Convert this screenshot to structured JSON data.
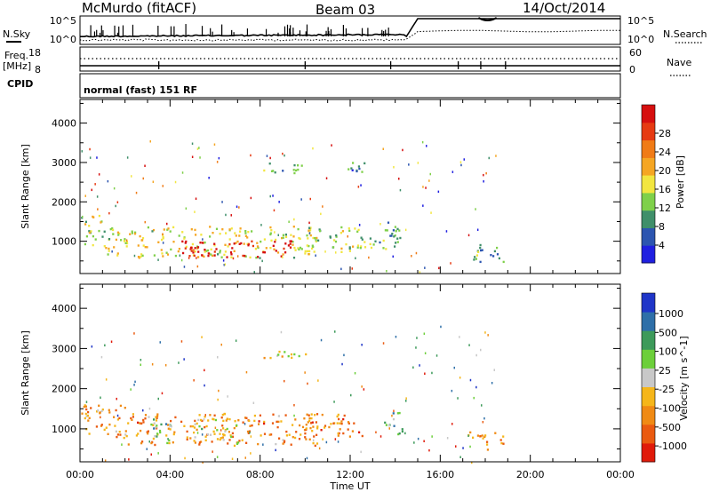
{
  "header": {
    "station": "McMurdo (fitACF)",
    "beam": "Beam 03",
    "date": "14/Oct/2014"
  },
  "noise_panel": {
    "left_label": "N.Sky",
    "right_label": "N.Search",
    "left_ticks": [
      "10^5",
      "10^0"
    ],
    "right_ticks": [
      "10^5",
      "10^0"
    ]
  },
  "freq_panel": {
    "left_label_line1": "Freq.",
    "left_label_line2": "[MHz]",
    "left_ticks": [
      "18",
      "8"
    ],
    "right_label": "Nave",
    "right_ticks": [
      "60",
      "0"
    ]
  },
  "cpid": {
    "label": "CPID",
    "mode": "normal (fast) 151 RF"
  },
  "chart_data": [
    {
      "type": "heatmap",
      "parameter": "Power",
      "ylabel": "Slant Range [km]",
      "xlabel": "",
      "x_ticks": [
        "00:00",
        "04:00",
        "08:00",
        "12:00",
        "16:00",
        "20:00",
        "00:00"
      ],
      "y_ticks": [
        1000,
        2000,
        3000,
        4000
      ],
      "xlim_hours": [
        0,
        24
      ],
      "ylim_km": [
        180,
        4600
      ],
      "colorbar": {
        "label": "Power [dB]",
        "ticks": [
          "4",
          "8",
          "12",
          "16",
          "20",
          "24",
          "28"
        ],
        "colors": [
          "#1f1fe0",
          "#2c55b0",
          "#3f8f6a",
          "#7fd04a",
          "#f2e640",
          "#f5a623",
          "#f07b16",
          "#e63a12",
          "#d60f0f"
        ]
      },
      "echo_regions": [
        {
          "t0": 0.0,
          "t1": 1.0,
          "r0": 900,
          "r1": 1700,
          "level": 0.45
        },
        {
          "t0": 1.0,
          "t1": 10.5,
          "r0": 600,
          "r1": 1400,
          "level": 0.5
        },
        {
          "t0": 4.5,
          "t1": 9.5,
          "r0": 620,
          "r1": 1050,
          "level": 0.95
        },
        {
          "t0": 10.0,
          "t1": 12.5,
          "r0": 750,
          "r1": 1400,
          "level": 0.45
        },
        {
          "t0": 12.3,
          "t1": 14.0,
          "r0": 800,
          "r1": 1300,
          "level": 0.35
        },
        {
          "t0": 13.5,
          "t1": 14.3,
          "r0": 850,
          "r1": 1500,
          "level": 0.3
        },
        {
          "t0": 8.0,
          "t1": 10.0,
          "r0": 2750,
          "r1": 3000,
          "level": 0.3
        },
        {
          "t0": 11.8,
          "t1": 12.6,
          "r0": 2600,
          "r1": 3100,
          "level": 0.25
        },
        {
          "t0": 17.2,
          "t1": 18.8,
          "r0": 500,
          "r1": 950,
          "level": 0.3
        }
      ]
    },
    {
      "type": "heatmap",
      "parameter": "Velocity",
      "ylabel": "Slant Range [km]",
      "xlabel": "Time UT",
      "x_ticks": [
        "00:00",
        "04:00",
        "08:00",
        "12:00",
        "16:00",
        "20:00",
        "00:00"
      ],
      "y_ticks": [
        1000,
        2000,
        3000,
        4000
      ],
      "xlim_hours": [
        0,
        24
      ],
      "ylim_km": [
        180,
        4600
      ],
      "colorbar": {
        "label": "Velocity [m s^-1]",
        "ticks": [
          "1000",
          "500",
          "100",
          "25",
          "-25",
          "-100",
          "-500",
          "-1000"
        ],
        "colors": [
          "#1f35c8",
          "#2e6fa8",
          "#3d9a5a",
          "#6ccf3a",
          "#c8c8c8",
          "#f5b61a",
          "#f08a14",
          "#ea5a10",
          "#e01a0a"
        ]
      },
      "echo_regions": [
        {
          "t0": 0.0,
          "t1": 2.0,
          "r0": 800,
          "r1": 1700,
          "level": 0.7
        },
        {
          "t0": 2.0,
          "t1": 10.5,
          "r0": 600,
          "r1": 1400,
          "level": 0.72
        },
        {
          "t0": 3.0,
          "t1": 4.0,
          "r0": 650,
          "r1": 1350,
          "level": 0.35
        },
        {
          "t0": 5.0,
          "t1": 7.0,
          "r0": 650,
          "r1": 1300,
          "level": 0.5
        },
        {
          "t0": 10.0,
          "t1": 12.5,
          "r0": 750,
          "r1": 1400,
          "level": 0.75
        },
        {
          "t0": 13.5,
          "t1": 14.3,
          "r0": 850,
          "r1": 1500,
          "level": 0.3
        },
        {
          "t0": 8.0,
          "t1": 10.0,
          "r0": 2750,
          "r1": 3000,
          "level": 0.55
        },
        {
          "t0": 17.2,
          "t1": 18.8,
          "r0": 500,
          "r1": 950,
          "level": 0.7
        }
      ]
    }
  ]
}
